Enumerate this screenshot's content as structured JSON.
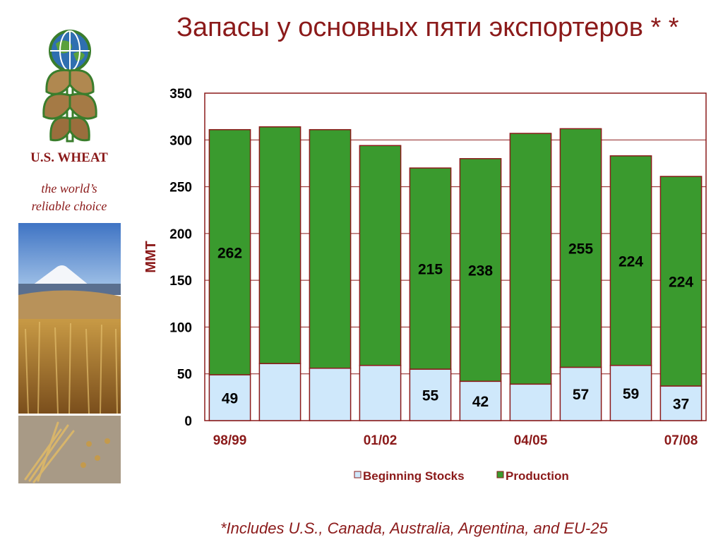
{
  "title": "Запасы у основных пяти экспортеров * *",
  "brand": {
    "name": "U.S. WHEAT",
    "tagline_line1": "the world’s",
    "tagline_line2": "reliable choice"
  },
  "footnote": "*Includes U.S., Canada, Australia, Argentina, and EU-25",
  "colors": {
    "title": "#8b1a1a",
    "beginning_stocks": "#cfe8fb",
    "production": "#3a9a2e",
    "bar_outline": "#8b1a1a",
    "plot_frame": "#8b1a1a"
  },
  "chart_data": {
    "type": "bar",
    "stacked": true,
    "categories": [
      "98/99",
      "99/00",
      "00/01",
      "01/02",
      "02/03",
      "03/04",
      "04/05",
      "05/06",
      "06/07",
      "07/08"
    ],
    "x_tick_labels": [
      "98/99",
      "",
      "",
      "01/02",
      "",
      "",
      "04/05",
      "",
      "",
      "07/08"
    ],
    "series": [
      {
        "name": "Beginning Stocks",
        "values": [
          49,
          61,
          56,
          59,
          55,
          42,
          39,
          57,
          59,
          37
        ]
      },
      {
        "name": "Production",
        "values": [
          262,
          253,
          255,
          235,
          215,
          238,
          268,
          255,
          224,
          224
        ]
      }
    ],
    "data_labels": {
      "Beginning Stocks": [
        "49",
        "",
        "",
        "",
        "55",
        "42",
        "",
        "57",
        "59",
        "37"
      ],
      "Production": [
        "262",
        "",
        "",
        "",
        "215",
        "238",
        "",
        "255",
        "224",
        "224"
      ]
    },
    "ylabel": "MMT",
    "ylim": [
      0,
      350
    ],
    "yticks": [
      0,
      50,
      100,
      150,
      200,
      250,
      300,
      350
    ],
    "grid": true,
    "legend": "bottom"
  }
}
